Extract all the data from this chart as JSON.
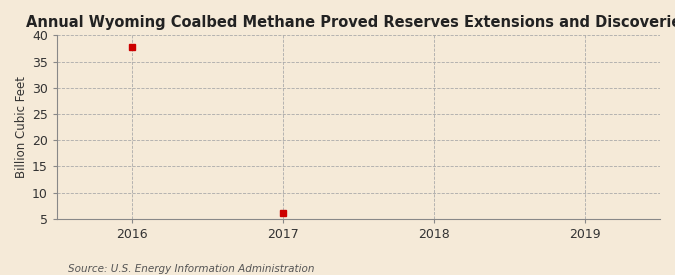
{
  "title": "Annual Wyoming Coalbed Methane Proved Reserves Extensions and Discoveries",
  "ylabel": "Billion Cubic Feet",
  "source_text": "Source: U.S. Energy Information Administration",
  "x_values": [
    2016,
    2017
  ],
  "y_values": [
    37.7,
    6.1
  ],
  "xlim": [
    2015.5,
    2019.5
  ],
  "ylim": [
    5,
    40
  ],
  "yticks": [
    5,
    10,
    15,
    20,
    25,
    30,
    35,
    40
  ],
  "xticks": [
    2016,
    2017,
    2018,
    2019
  ],
  "marker_color": "#cc0000",
  "marker": "s",
  "marker_size": 4,
  "background_color": "#f5ead8",
  "plot_bg_color": "#f5ead8",
  "grid_color": "#aaaaaa",
  "spine_color": "#888888",
  "title_fontsize": 10.5,
  "axis_fontsize": 8.5,
  "tick_fontsize": 9,
  "source_fontsize": 7.5
}
